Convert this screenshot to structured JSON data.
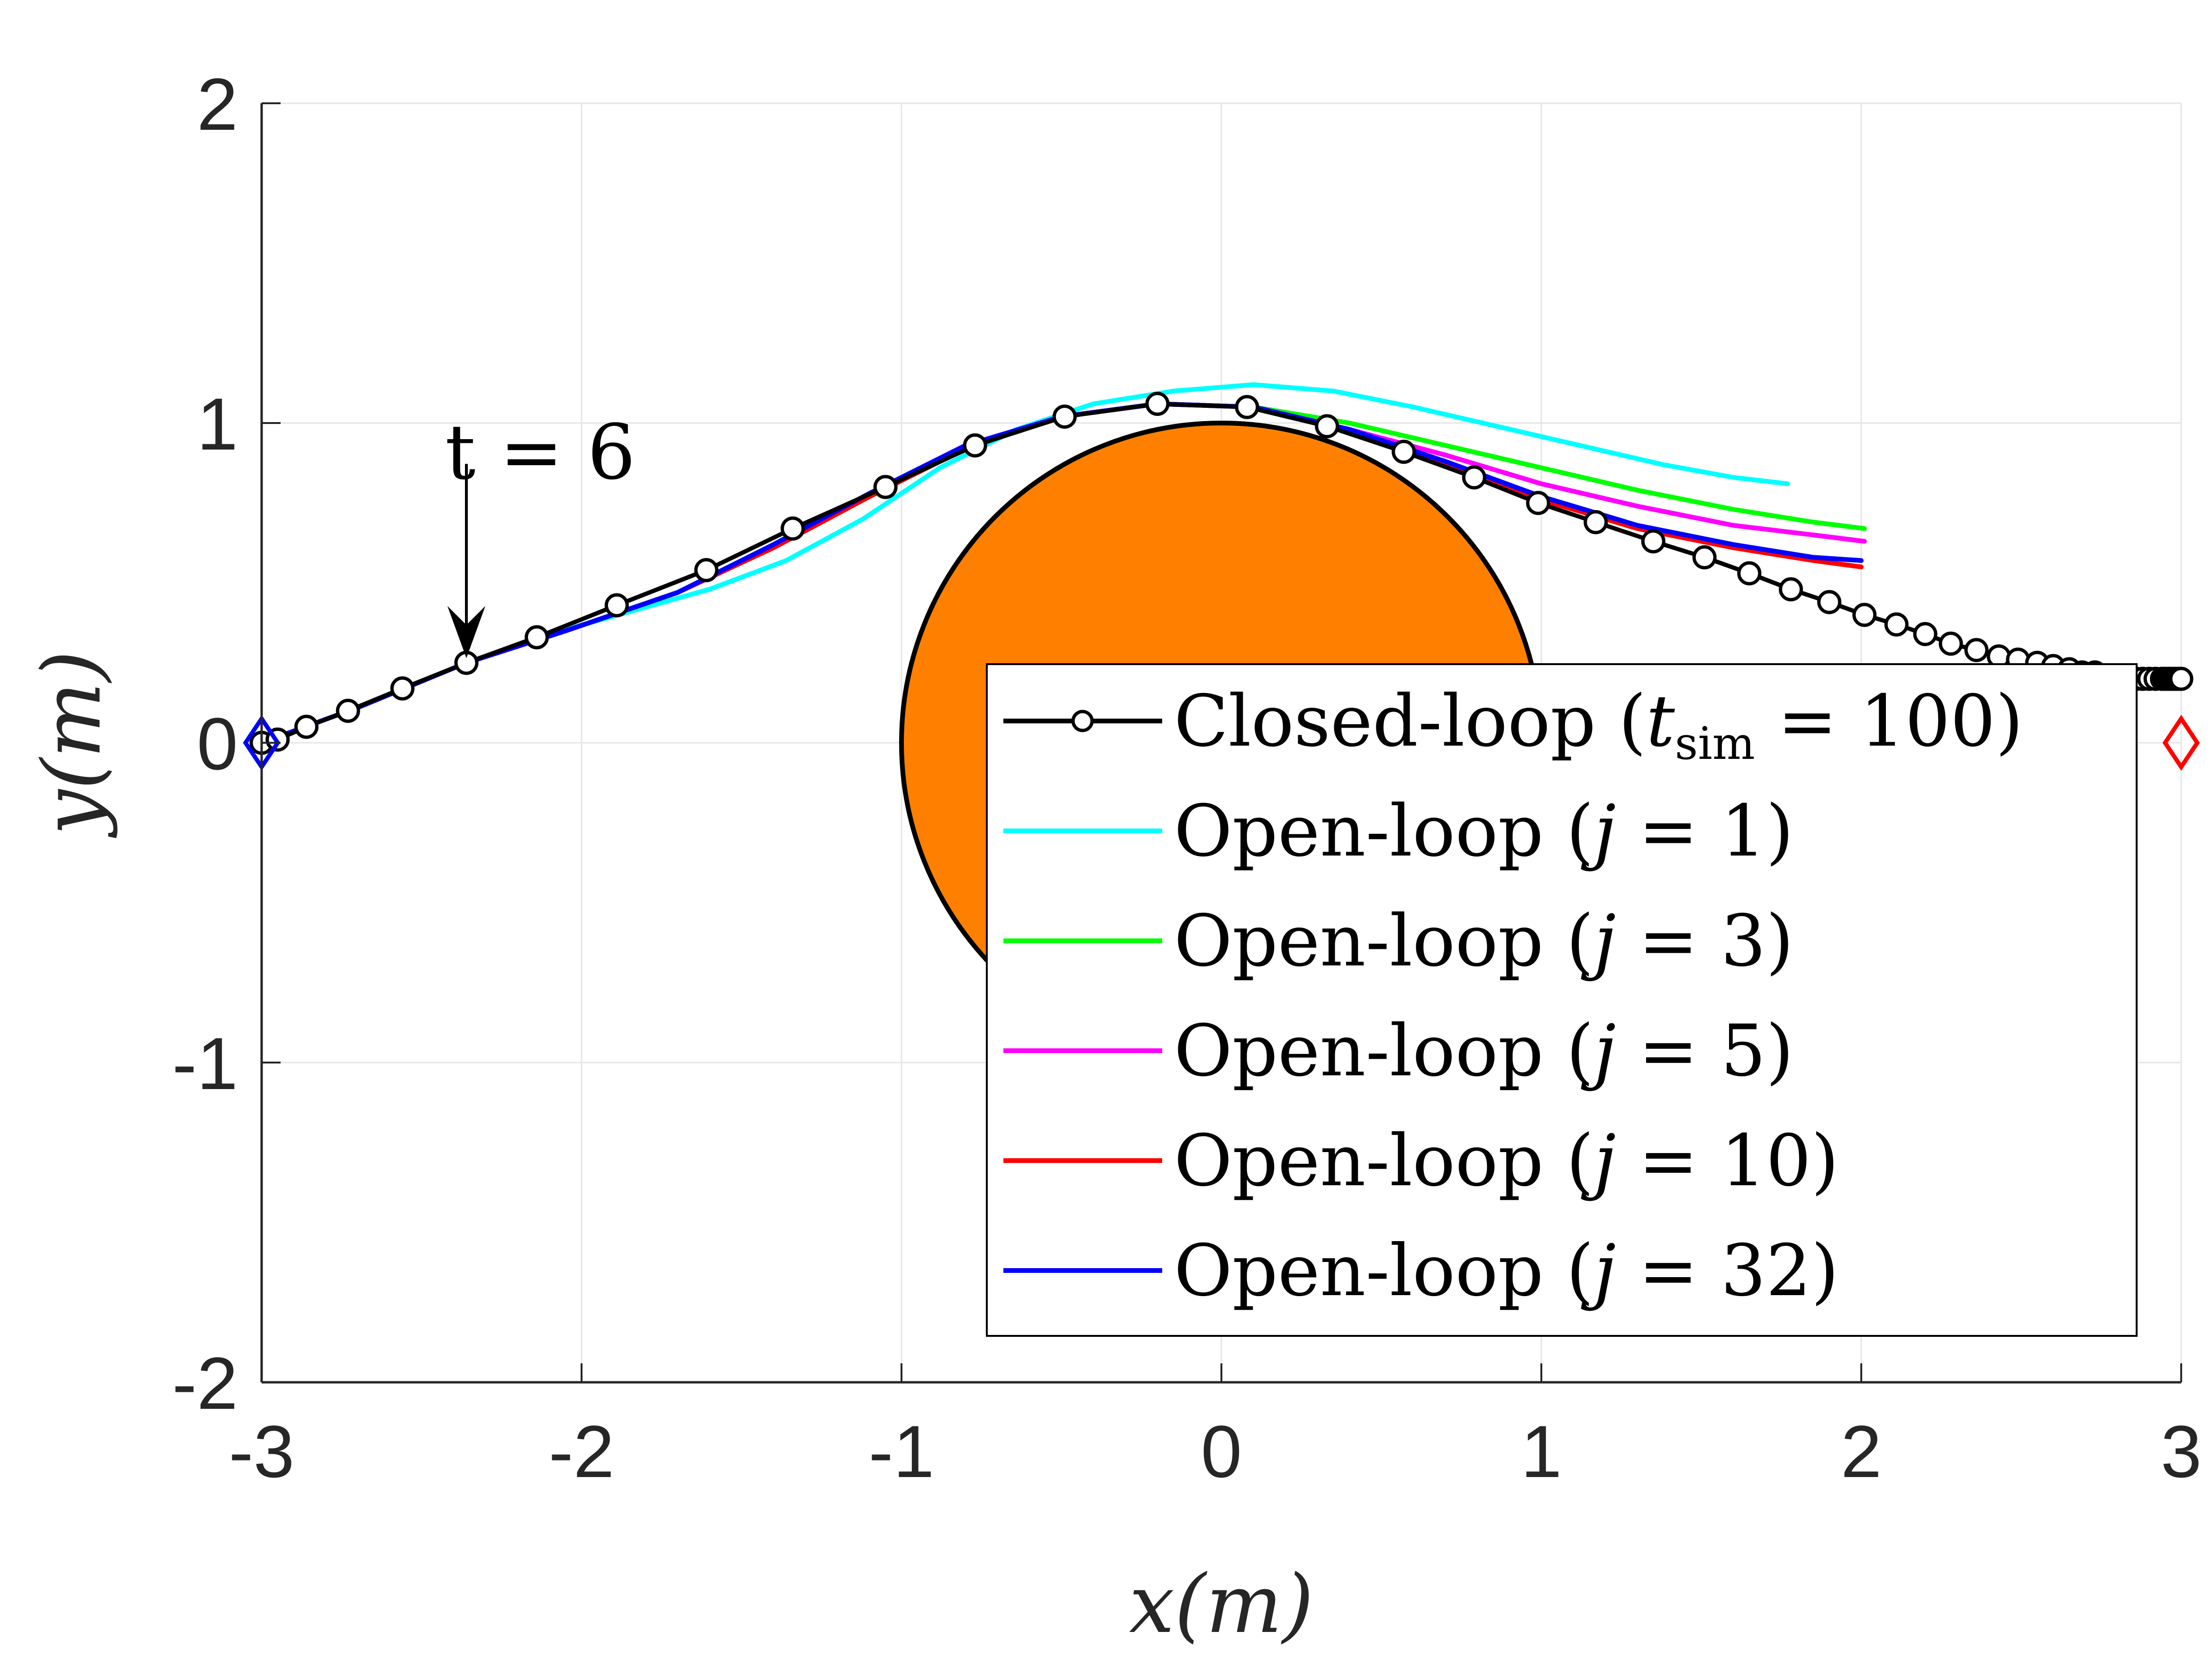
{
  "chart_data": {
    "type": "line",
    "xlabel": "x(m)",
    "ylabel": "y(m)",
    "xlim": [
      -3,
      3
    ],
    "ylim": [
      -2,
      2
    ],
    "xticks": [
      "-3",
      "-2",
      "-1",
      "0",
      "1",
      "2",
      "3"
    ],
    "yticks": [
      "-2",
      "-1",
      "0",
      "1",
      "2"
    ],
    "grid": true,
    "legend_position": "lower-right",
    "obstacle": {
      "shape": "circle",
      "center": [
        0,
        0
      ],
      "radius": 1,
      "color": "#ff8000"
    },
    "start_marker": {
      "x": -3,
      "y": 0,
      "shape": "diamond",
      "color": "#0000ff"
    },
    "goal_marker": {
      "x": 3,
      "y": 0,
      "shape": "diamond",
      "color": "#ff0000"
    },
    "annotation": {
      "text": "t = 6",
      "x": -2.36,
      "y": 0.25
    },
    "series": [
      {
        "name": "Closed-loop (t_sim = 100)",
        "label_main": "Closed-loop (",
        "label_var": "t",
        "label_sub": "sim",
        "label_tail": " = 100)",
        "color": "#000000",
        "marker": "circle",
        "x": [
          -3.0,
          -2.95,
          -2.86,
          -2.73,
          -2.56,
          -2.36,
          -2.14,
          -1.89,
          -1.61,
          -1.34,
          -1.05,
          -0.77,
          -0.49,
          -0.2,
          0.08,
          0.33,
          0.57,
          0.79,
          0.99,
          1.17,
          1.35,
          1.51,
          1.65,
          1.78,
          1.9,
          2.01,
          2.11,
          2.2,
          2.28,
          2.36,
          2.43,
          2.49,
          2.55,
          2.6,
          2.65,
          2.69,
          2.73,
          2.77,
          2.8,
          2.83,
          2.86,
          2.88,
          2.9,
          2.92,
          2.94,
          2.95,
          2.96,
          2.97,
          2.98,
          2.99,
          3.0
        ],
        "y": [
          0.0,
          0.01,
          0.05,
          0.1,
          0.17,
          0.25,
          0.33,
          0.43,
          0.54,
          0.67,
          0.8,
          0.93,
          1.02,
          1.06,
          1.05,
          0.99,
          0.91,
          0.83,
          0.75,
          0.69,
          0.63,
          0.58,
          0.53,
          0.48,
          0.44,
          0.4,
          0.37,
          0.34,
          0.31,
          0.29,
          0.27,
          0.26,
          0.25,
          0.24,
          0.23,
          0.22,
          0.22,
          0.21,
          0.21,
          0.2,
          0.2,
          0.2,
          0.2,
          0.2,
          0.2,
          0.2,
          0.2,
          0.2,
          0.2,
          0.2,
          0.2
        ]
      },
      {
        "name": "Open-loop (j = 1)",
        "label_main": "Open-loop (",
        "label_var": "j",
        "label_tail": " = 1)",
        "color": "#00ffff",
        "x": [
          -2.36,
          -2.1,
          -1.85,
          -1.6,
          -1.36,
          -1.12,
          -0.88,
          -0.64,
          -0.4,
          -0.15,
          0.1,
          0.35,
          0.6,
          0.86,
          1.12,
          1.38,
          1.6,
          1.77
        ],
        "y": [
          0.25,
          0.34,
          0.41,
          0.48,
          0.57,
          0.7,
          0.86,
          0.98,
          1.06,
          1.1,
          1.12,
          1.1,
          1.05,
          0.99,
          0.93,
          0.87,
          0.83,
          0.81
        ]
      },
      {
        "name": "Open-loop (j = 3)",
        "label_main": "Open-loop (",
        "label_var": "j",
        "label_tail": " = 3)",
        "color": "#00ff00",
        "x": [
          -2.36,
          -2.05,
          -1.7,
          -1.4,
          -1.1,
          -0.8,
          -0.5,
          -0.2,
          0.1,
          0.4,
          0.7,
          1.0,
          1.3,
          1.6,
          1.85,
          2.01
        ],
        "y": [
          0.25,
          0.35,
          0.47,
          0.61,
          0.77,
          0.92,
          1.02,
          1.06,
          1.05,
          1.0,
          0.93,
          0.86,
          0.79,
          0.73,
          0.69,
          0.67
        ]
      },
      {
        "name": "Open-loop (j = 5)",
        "label_main": "Open-loop (",
        "label_var": "j",
        "label_tail": " = 5)",
        "color": "#ff00ff",
        "x": [
          -2.36,
          -2.05,
          -1.7,
          -1.4,
          -1.1,
          -0.8,
          -0.5,
          -0.2,
          0.1,
          0.4,
          0.7,
          1.0,
          1.3,
          1.6,
          1.85,
          2.01
        ],
        "y": [
          0.25,
          0.35,
          0.47,
          0.61,
          0.77,
          0.92,
          1.02,
          1.06,
          1.05,
          0.98,
          0.9,
          0.81,
          0.74,
          0.68,
          0.65,
          0.63
        ]
      },
      {
        "name": "Open-loop (j = 10)",
        "label_main": "Open-loop (",
        "label_var": "j",
        "label_tail": " = 10)",
        "color": "#ff0000",
        "x": [
          -2.36,
          -2.05,
          -1.7,
          -1.4,
          -1.1,
          -0.8,
          -0.5,
          -0.2,
          0.1,
          0.4,
          0.7,
          1.0,
          1.3,
          1.6,
          1.85,
          2.0
        ],
        "y": [
          0.25,
          0.35,
          0.47,
          0.61,
          0.77,
          0.92,
          1.02,
          1.06,
          1.05,
          0.98,
          0.87,
          0.76,
          0.67,
          0.61,
          0.57,
          0.55
        ]
      },
      {
        "name": "Open-loop (j = 32)",
        "label_main": "Open-loop (",
        "label_var": "j",
        "label_tail": " = 32)",
        "color": "#0000ff",
        "x": [
          -3.0,
          -2.7,
          -2.36,
          -2.05,
          -1.7,
          -1.4,
          -1.1,
          -0.8,
          -0.5,
          -0.2,
          0.1,
          0.4,
          0.7,
          1.0,
          1.3,
          1.6,
          1.85,
          2.0
        ],
        "y": [
          0.0,
          0.11,
          0.25,
          0.35,
          0.47,
          0.62,
          0.78,
          0.93,
          1.02,
          1.06,
          1.05,
          0.98,
          0.88,
          0.77,
          0.68,
          0.62,
          0.58,
          0.57
        ]
      }
    ]
  }
}
